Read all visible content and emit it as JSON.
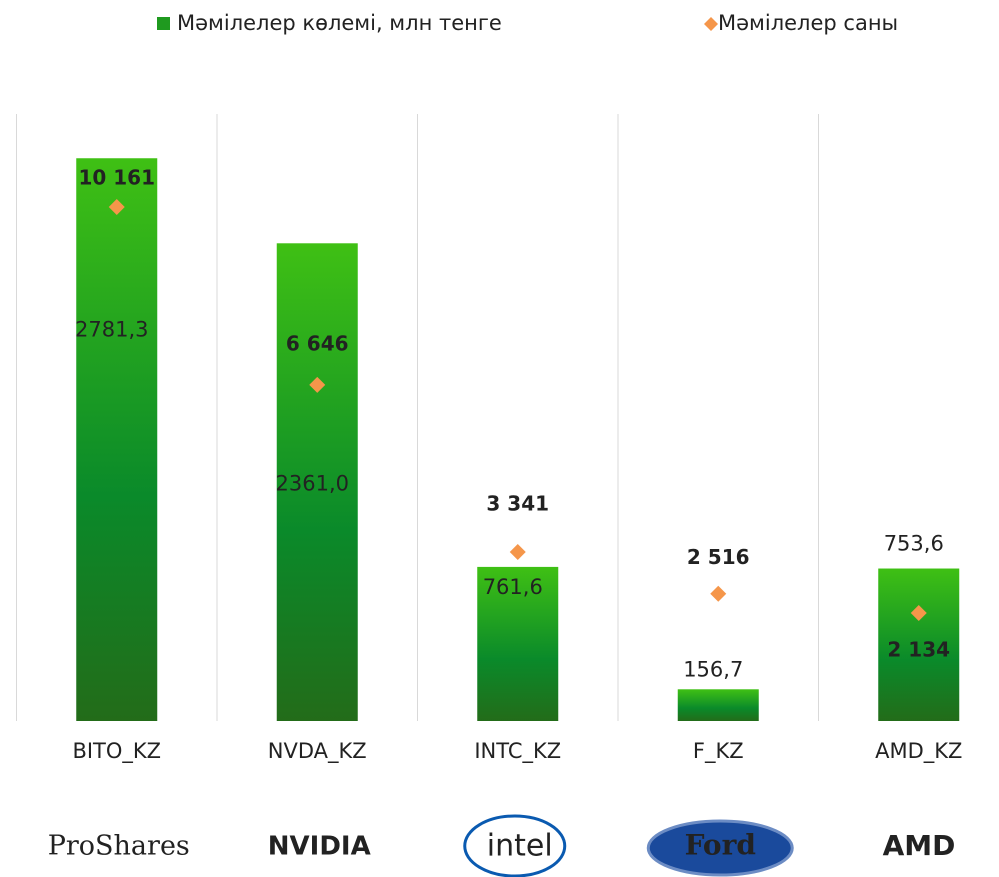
{
  "chart_data": {
    "type": "bar_diamond",
    "categories": [
      "BITO_KZ",
      "NVDA_KZ",
      "INTC_KZ",
      "F_KZ",
      "AMD_KZ"
    ],
    "series": [
      {
        "name": "Мәмілелер көлемі, млн тенге",
        "color": "#1f9a1f",
        "values": [
          2781.3,
          2361.0,
          761.6,
          156.7,
          753.6
        ],
        "value_labels": [
          "2781,3",
          "2361,0",
          "761,6",
          "156,7",
          "753,6"
        ]
      },
      {
        "name": "Мәмілелер саны",
        "color": "#f5964a",
        "axis": "y2",
        "values": [
          10161,
          6646,
          3341,
          2516,
          2134
        ],
        "value_labels": [
          "10 161",
          "6 646",
          "3 341",
          "2 516",
          "2 134"
        ]
      }
    ],
    "ylim": [
      0,
      3000
    ],
    "y2lim": [
      0,
      12000
    ],
    "logos": [
      "ProShares",
      "NVIDIA",
      "intel",
      "Ford",
      "AMD"
    ]
  }
}
